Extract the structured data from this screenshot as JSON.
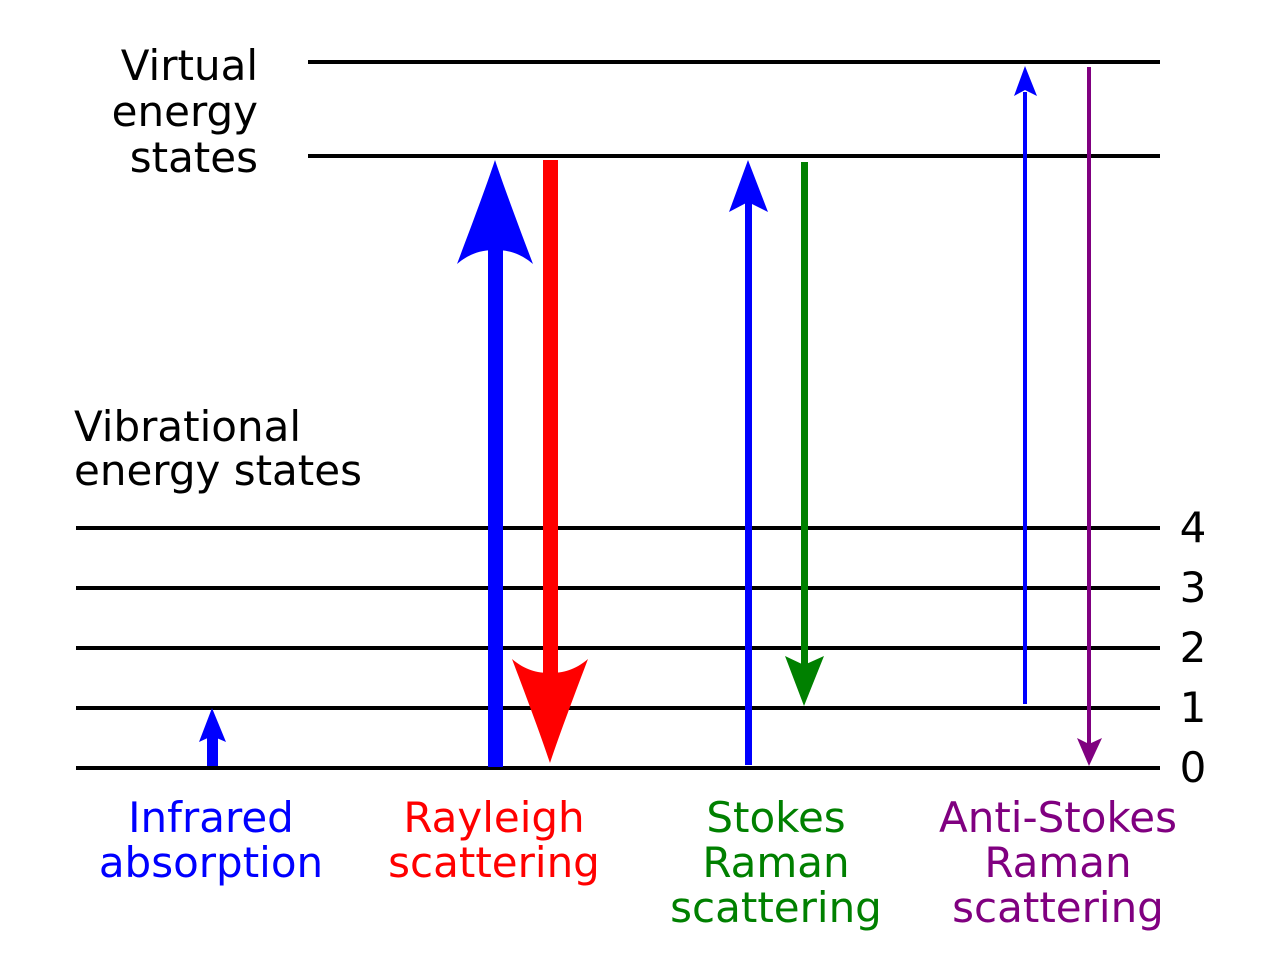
{
  "labels": {
    "virtual": [
      "Virtual",
      "energy",
      "states"
    ],
    "vibrational": [
      "Vibrational",
      "energy states"
    ]
  },
  "levels": [
    "0",
    "1",
    "2",
    "3",
    "4"
  ],
  "processes": [
    {
      "key": "infrared",
      "lines": [
        "Infrared",
        "absorption"
      ],
      "color": "#0000ff"
    },
    {
      "key": "rayleigh",
      "lines": [
        "Rayleigh",
        "scattering"
      ],
      "color": "#ff0000"
    },
    {
      "key": "stokes",
      "lines": [
        "Stokes",
        "Raman",
        "scattering"
      ],
      "color": "#008000"
    },
    {
      "key": "antistokes",
      "lines": [
        "Anti-Stokes",
        "Raman",
        "scattering"
      ],
      "color": "#800080"
    }
  ],
  "colors": {
    "line": "#000000",
    "blue": "#0000ff",
    "red": "#ff0000",
    "green": "#008000",
    "purple": "#800080"
  }
}
